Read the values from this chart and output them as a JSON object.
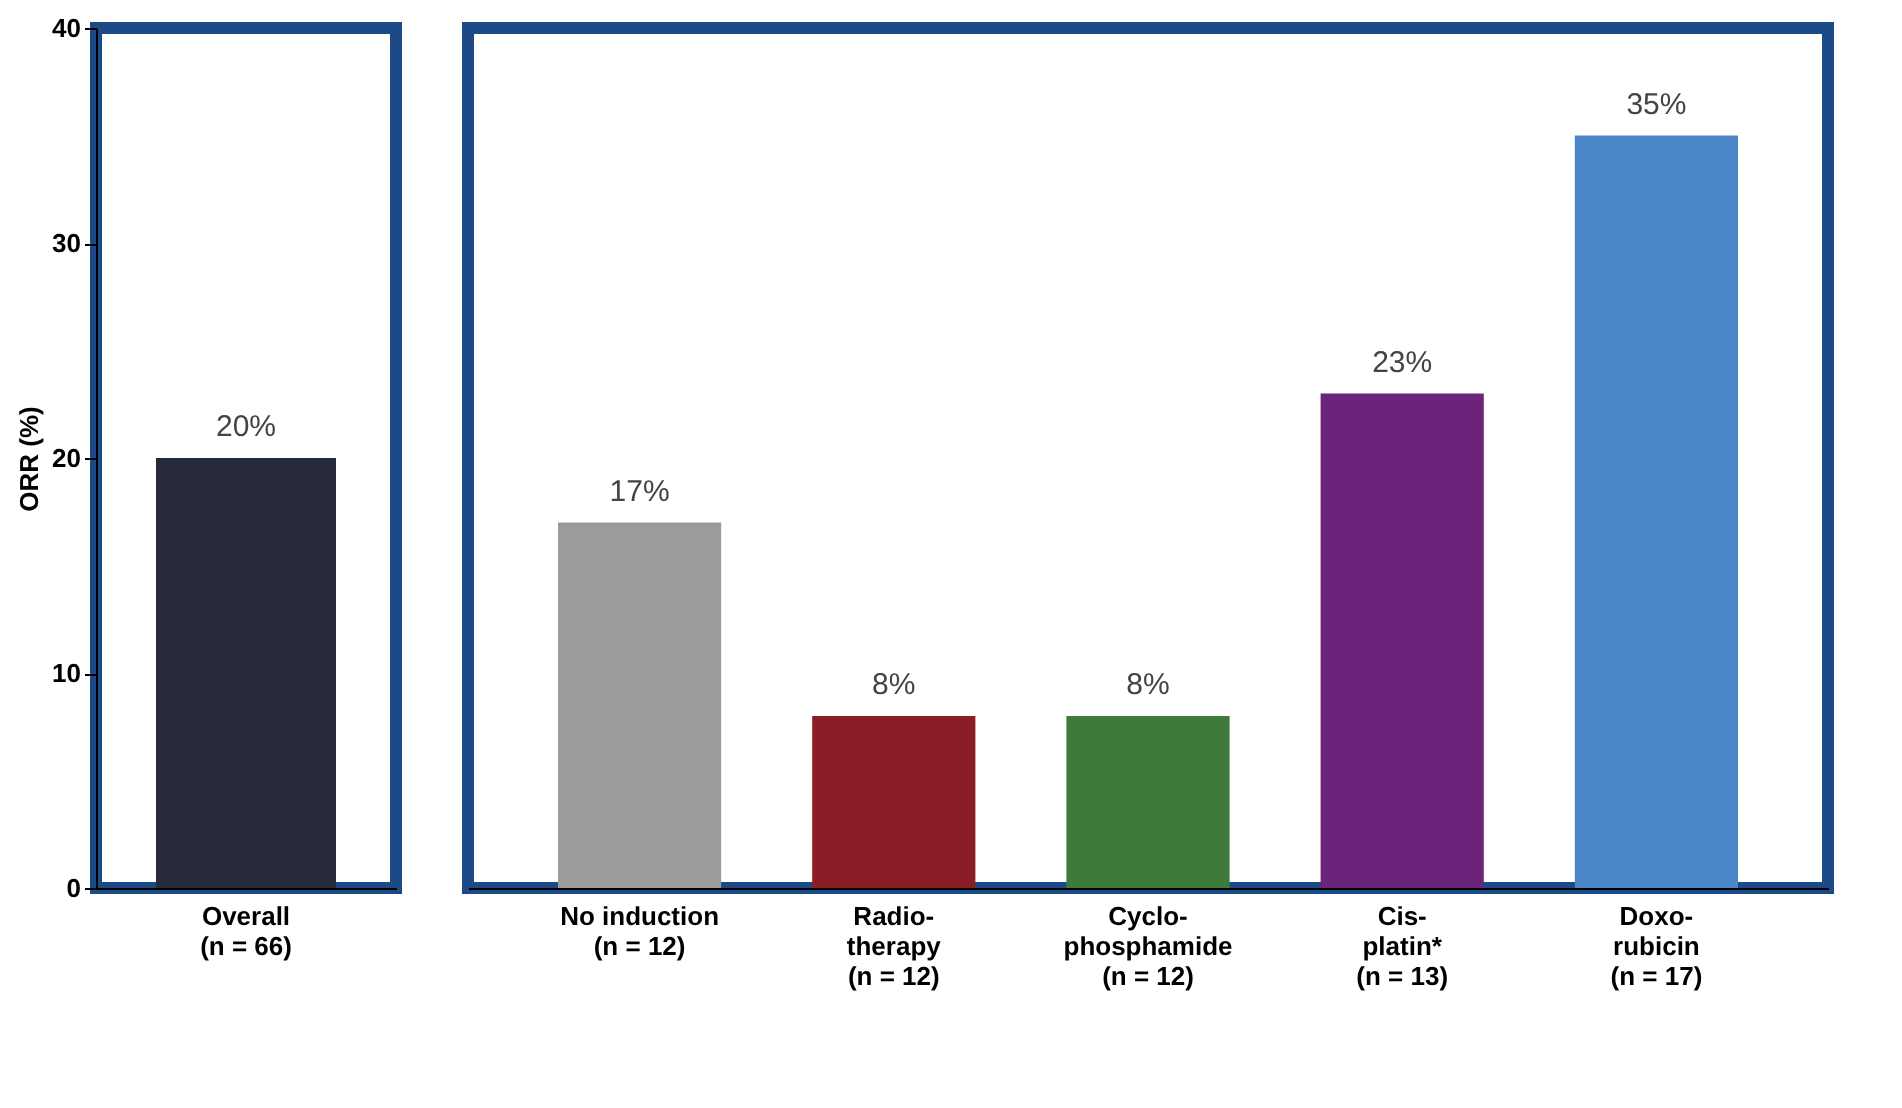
{
  "chart_data": [
    {
      "type": "bar",
      "ylabel": "ORR (%)",
      "categories": [
        "Overall\n(n = 66)"
      ],
      "values": [
        20
      ],
      "colors": [
        "#262a3b"
      ],
      "value_labels": [
        "20%"
      ],
      "ylim": [
        0,
        40
      ],
      "yticks": [
        0,
        10,
        20,
        30,
        40
      ],
      "grid": false
    },
    {
      "type": "bar",
      "categories": [
        "No induction\n(n = 12)",
        "Radio-\ntherapy\n(n = 12)",
        "Cyclo-\nphosphamide\n(n = 12)",
        "Cis-\nplatin*\n(n = 13)",
        "Doxo-\nrubicin\n(n = 17)"
      ],
      "values": [
        17,
        8,
        8,
        23,
        35
      ],
      "colors": [
        "#9b9b9b",
        "#8b1d26",
        "#3e7b3a",
        "#6b2479",
        "#4a86c8"
      ],
      "value_labels": [
        "17%",
        "8%",
        "8%",
        "23%",
        "35%"
      ],
      "ylim": [
        0,
        40
      ],
      "yticks": [
        0,
        10,
        20,
        30,
        40
      ],
      "tick_labels": "x",
      "grid": false
    }
  ]
}
